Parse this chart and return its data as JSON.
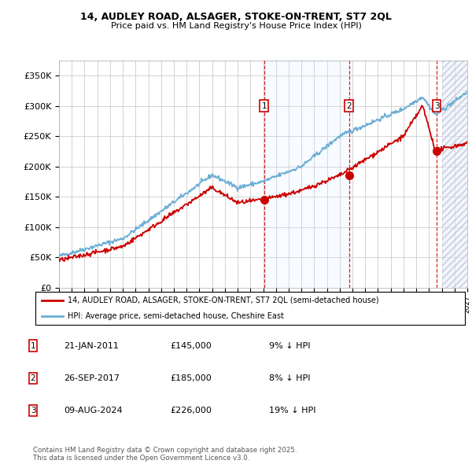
{
  "title": "14, AUDLEY ROAD, ALSAGER, STOKE-ON-TRENT, ST7 2QL",
  "subtitle": "Price paid vs. HM Land Registry's House Price Index (HPI)",
  "ylabel_ticks": [
    "£0",
    "£50K",
    "£100K",
    "£150K",
    "£200K",
    "£250K",
    "£300K",
    "£350K"
  ],
  "ylabel_values": [
    0,
    50000,
    100000,
    150000,
    200000,
    250000,
    300000,
    350000
  ],
  "ylim": [
    0,
    375000
  ],
  "xlim_start": 1995.0,
  "xlim_end": 2027.0,
  "hpi_color": "#6baed6",
  "price_color": "#cc0000",
  "purchase_dates": [
    2011.07,
    2017.73,
    2024.6
  ],
  "purchase_prices": [
    145000,
    185000,
    226000
  ],
  "purchase_labels": [
    "1",
    "2",
    "3"
  ],
  "legend_label_price": "14, AUDLEY ROAD, ALSAGER, STOKE-ON-TRENT, ST7 2QL (semi-detached house)",
  "legend_label_hpi": "HPI: Average price, semi-detached house, Cheshire East",
  "table_rows": [
    {
      "num": "1",
      "date": "21-JAN-2011",
      "price": "£145,000",
      "hpi": "9% ↓ HPI"
    },
    {
      "num": "2",
      "date": "26-SEP-2017",
      "price": "£185,000",
      "hpi": "8% ↓ HPI"
    },
    {
      "num": "3",
      "date": "09-AUG-2024",
      "price": "£226,000",
      "hpi": "19% ↓ HPI"
    }
  ],
  "footnote": "Contains HM Land Registry data © Crown copyright and database right 2025.\nThis data is licensed under the Open Government Licence v3.0.",
  "background_color": "#ffffff",
  "grid_color": "#cccccc",
  "hatch_fill_color": "#ddeeff",
  "shade_color": "#ddeeff"
}
